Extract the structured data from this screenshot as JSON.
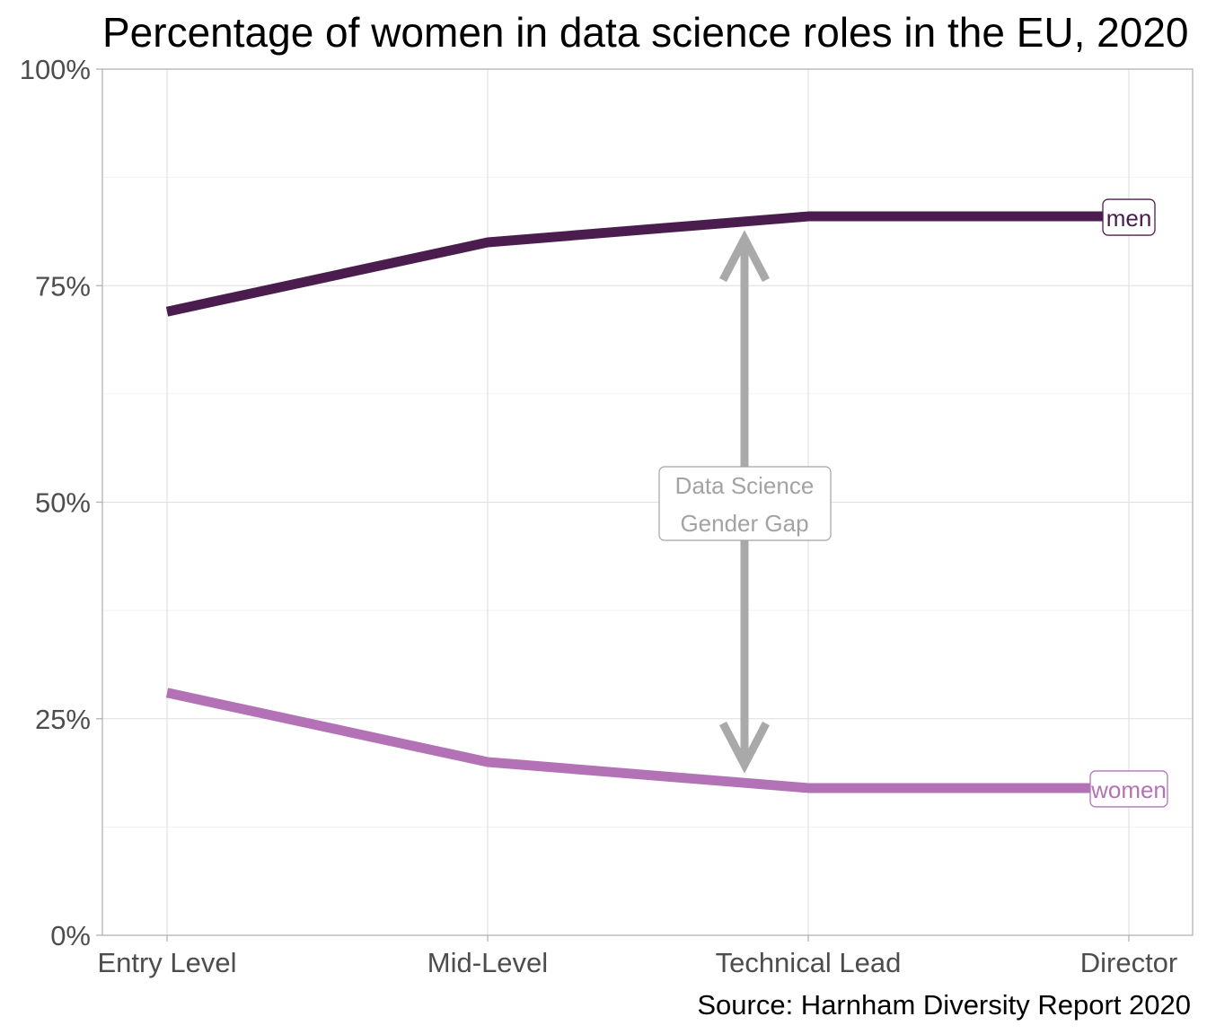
{
  "chart_data": {
    "type": "line",
    "title": "Percentage of women in data science roles in the EU, 2020",
    "caption": "Source: Harnham Diversity Report 2020",
    "categories": [
      "Entry Level",
      "Mid-Level",
      "Technical Lead",
      "Director"
    ],
    "series": [
      {
        "name": "men",
        "values": [
          72,
          80,
          83,
          83
        ],
        "color": "#4b1d4f"
      },
      {
        "name": "women",
        "values": [
          28,
          20,
          17,
          17
        ],
        "color": "#b472b6"
      }
    ],
    "ylim": [
      0,
      100
    ],
    "yticks": [
      0,
      25,
      50,
      75,
      100
    ],
    "ytick_labels": [
      "0%",
      "25%",
      "50%",
      "75%",
      "100%"
    ],
    "grid": true,
    "annotation": {
      "lines": [
        "Data Science",
        "Gender Gap"
      ],
      "color": "#a9a9a9"
    }
  }
}
